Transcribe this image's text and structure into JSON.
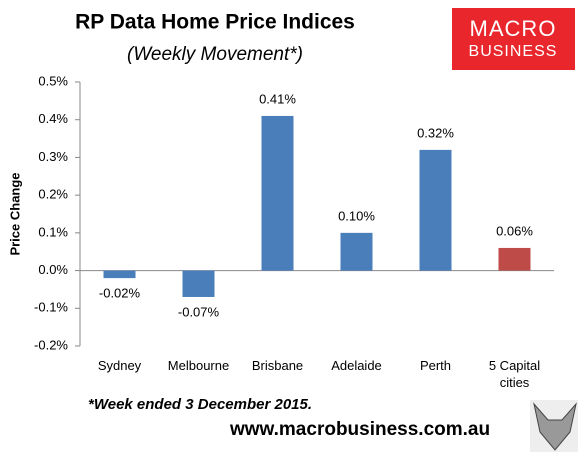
{
  "chart_data": {
    "type": "bar",
    "title": "RP Data Home Price Indices",
    "subtitle": "(Weekly Movement*)",
    "y_label": "Price Change",
    "categories": [
      "Sydney",
      "Melbourne",
      "Brisbane",
      "Adelaide",
      "Perth",
      "5 Capital cities"
    ],
    "values": [
      -0.02,
      -0.07,
      0.41,
      0.1,
      0.32,
      0.06
    ],
    "value_labels": [
      "-0.02%",
      "-0.07%",
      "0.41%",
      "0.10%",
      "0.32%",
      "0.06%"
    ],
    "colors": [
      "#4a7ebb",
      "#4a7ebb",
      "#4a7ebb",
      "#4a7ebb",
      "#4a7ebb",
      "#be4b48"
    ],
    "ylim": [
      -0.2,
      0.5
    ],
    "yticks": [
      {
        "value": -0.2,
        "label": "-0.2%"
      },
      {
        "value": -0.1,
        "label": "-0.1%"
      },
      {
        "value": 0,
        "label": "0.0%"
      },
      {
        "value": 0.1,
        "label": "0.1%"
      },
      {
        "value": 0.2,
        "label": "0.2%"
      },
      {
        "value": 0.3,
        "label": "0.3%"
      },
      {
        "value": 0.4,
        "label": "0.4%"
      },
      {
        "value": 0.5,
        "label": "0.5%"
      }
    ],
    "grid": false,
    "footnote": "*Week ended 3 December 2015.",
    "source": "www.macrobusiness.com.au"
  },
  "logo": {
    "top": "MACRO",
    "bottom": "BUSINESS"
  }
}
